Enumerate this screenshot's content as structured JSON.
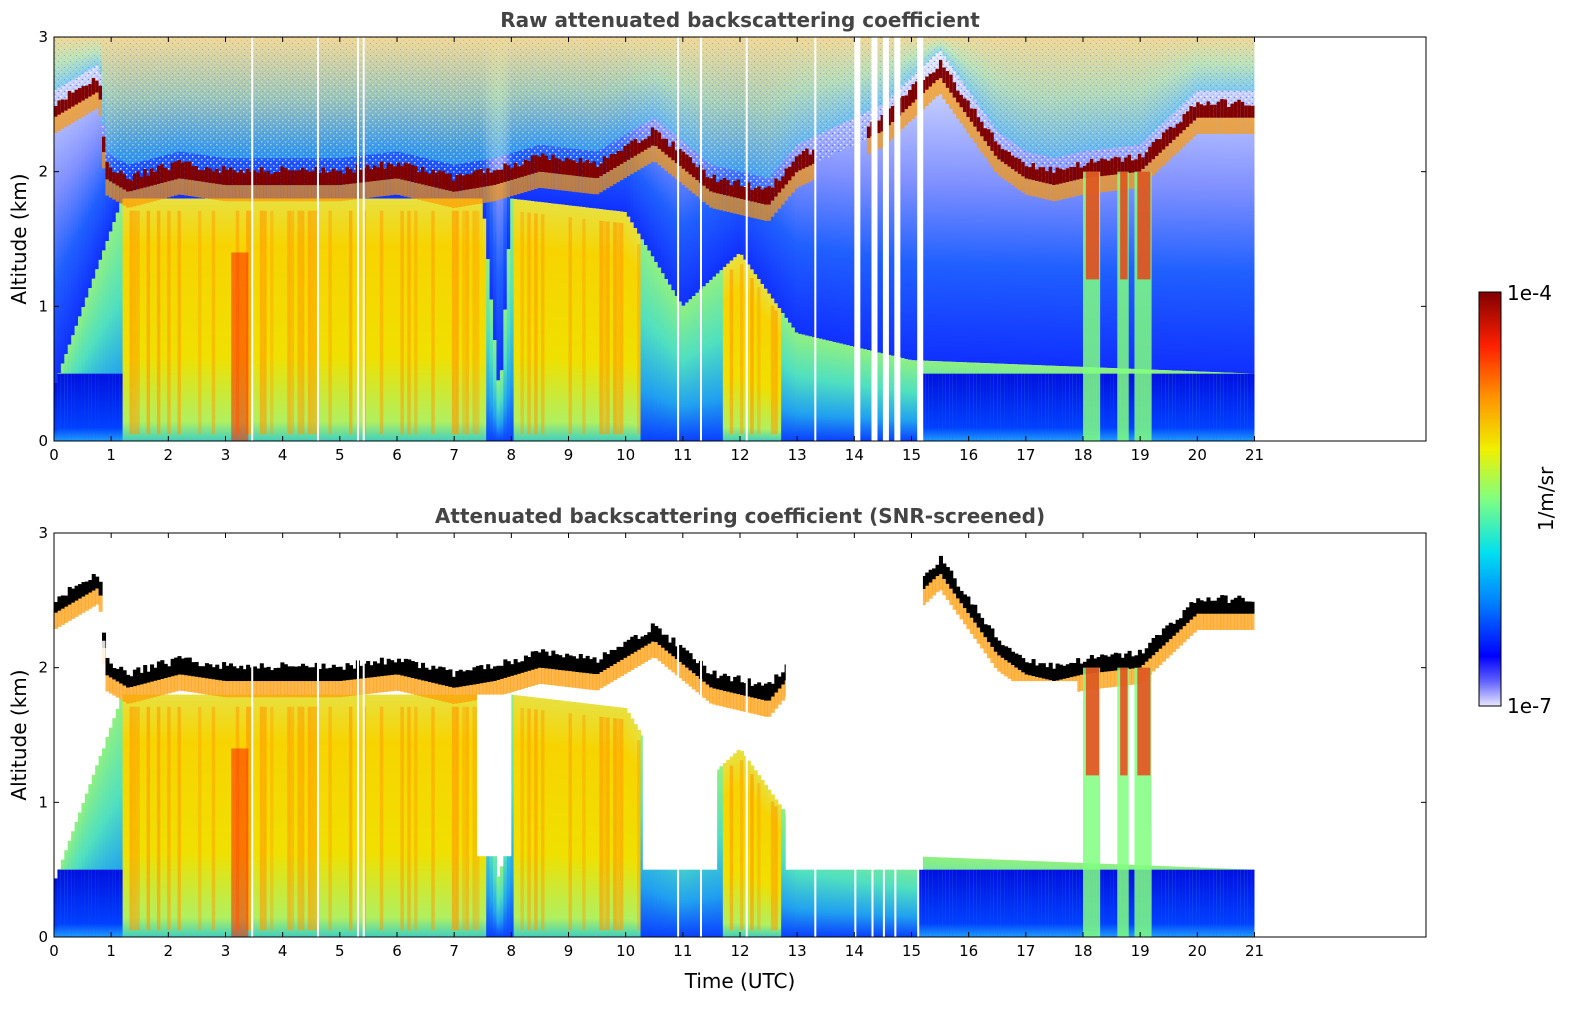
{
  "chart_data": [
    {
      "type": "heatmap",
      "title": "Raw attenuated backscattering coefficient",
      "xlabel": "",
      "ylabel": "Altitude (km)",
      "xlim": [
        0,
        24
      ],
      "ylim": [
        0,
        3
      ],
      "x_ticks": [
        "0",
        "1",
        "2",
        "3",
        "4",
        "5",
        "6",
        "7",
        "8",
        "9",
        "10",
        "11",
        "12",
        "13",
        "14",
        "15",
        "16",
        "17",
        "18",
        "19",
        "20",
        "21"
      ],
      "y_ticks": [
        "0",
        "1",
        "2",
        "3"
      ],
      "data_end_hour": 21,
      "cloud_base_km": [
        {
          "x": 0.0,
          "y": 2.4
        },
        {
          "x": 0.8,
          "y": 2.6
        },
        {
          "x": 0.9,
          "y": 1.95
        },
        {
          "x": 1.3,
          "y": 1.85
        },
        {
          "x": 2.2,
          "y": 1.95
        },
        {
          "x": 3.0,
          "y": 1.9
        },
        {
          "x": 4.0,
          "y": 1.9
        },
        {
          "x": 5.0,
          "y": 1.9
        },
        {
          "x": 6.0,
          "y": 1.95
        },
        {
          "x": 7.0,
          "y": 1.85
        },
        {
          "x": 7.7,
          "y": 1.9
        },
        {
          "x": 8.5,
          "y": 2.0
        },
        {
          "x": 9.5,
          "y": 1.95
        },
        {
          "x": 10.5,
          "y": 2.2
        },
        {
          "x": 11.5,
          "y": 1.85
        },
        {
          "x": 12.5,
          "y": 1.75
        },
        {
          "x": 13.0,
          "y": 2.0
        },
        {
          "x": 14.5,
          "y": 2.3
        },
        {
          "x": 15.5,
          "y": 2.7
        },
        {
          "x": 16.5,
          "y": 2.1
        },
        {
          "x": 17.0,
          "y": 1.95
        },
        {
          "x": 17.5,
          "y": 1.9
        },
        {
          "x": 18.0,
          "y": 1.95
        },
        {
          "x": 19.0,
          "y": 2.0
        },
        {
          "x": 19.5,
          "y": 2.2
        },
        {
          "x": 20.0,
          "y": 2.4
        },
        {
          "x": 20.5,
          "y": 2.4
        }
      ],
      "aerosol_top_km": [
        {
          "x": 0.0,
          "y": 0.4
        },
        {
          "x": 1.2,
          "y": 1.8
        },
        {
          "x": 7.5,
          "y": 1.8
        },
        {
          "x": 7.8,
          "y": 0.3
        },
        {
          "x": 8.0,
          "y": 1.8
        },
        {
          "x": 10.0,
          "y": 1.7
        },
        {
          "x": 11.0,
          "y": 1.0
        },
        {
          "x": 12.0,
          "y": 1.4
        },
        {
          "x": 13.0,
          "y": 0.8
        },
        {
          "x": 15.0,
          "y": 0.6
        },
        {
          "x": 21.0,
          "y": 0.5
        }
      ]
    },
    {
      "type": "heatmap",
      "title": "Attenuated backscattering coefficient (SNR-screened)",
      "xlabel": "Time (UTC)",
      "ylabel": "Altitude (km)",
      "xlim": [
        0,
        24
      ],
      "ylim": [
        0,
        3
      ],
      "x_ticks": [
        "0",
        "1",
        "2",
        "3",
        "4",
        "5",
        "6",
        "7",
        "8",
        "9",
        "10",
        "11",
        "12",
        "13",
        "14",
        "15",
        "16",
        "17",
        "18",
        "19",
        "20",
        "21"
      ],
      "y_ticks": [
        "0",
        "1",
        "2",
        "3"
      ],
      "data_end_hour": 21,
      "cloud_color": "#000000"
    }
  ],
  "colorbar": {
    "label": "1/m/sr",
    "max_label": "1e-4",
    "min_label": "1e-7",
    "scale": "log",
    "colormap": "jet"
  },
  "colors": {
    "dark_red": "#800000",
    "red": "#ff2000",
    "orange": "#ff9900",
    "yellow": "#f2e200",
    "green": "#80ff80",
    "cyan": "#20d0f0",
    "blue": "#0020ff",
    "dark_blue": "#0000c0",
    "axis": "#000000"
  }
}
